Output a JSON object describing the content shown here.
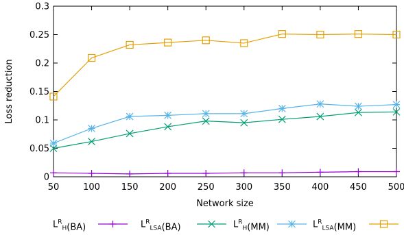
{
  "chart_data": {
    "type": "line",
    "title": "",
    "xlabel": "Network size",
    "ylabel": "Loss reduction",
    "x": [
      50,
      100,
      150,
      200,
      250,
      300,
      350,
      400,
      450,
      500
    ],
    "xlim": [
      50,
      500
    ],
    "ylim": [
      0,
      0.3
    ],
    "x_ticks": [
      {
        "value": 50,
        "label": "50"
      },
      {
        "value": 100,
        "label": "100"
      },
      {
        "value": 150,
        "label": "150"
      },
      {
        "value": 200,
        "label": "200"
      },
      {
        "value": 250,
        "label": "250"
      },
      {
        "value": 300,
        "label": "300"
      },
      {
        "value": 350,
        "label": "350"
      },
      {
        "value": 400,
        "label": "400"
      },
      {
        "value": 450,
        "label": "450"
      },
      {
        "value": 500,
        "label": "500"
      }
    ],
    "y_ticks": [
      {
        "value": 0,
        "label": "0"
      },
      {
        "value": 0.05,
        "label": "0.05"
      },
      {
        "value": 0.1,
        "label": "0.1"
      },
      {
        "value": 0.15,
        "label": "0.15"
      },
      {
        "value": 0.2,
        "label": "0.2"
      },
      {
        "value": 0.25,
        "label": "0.25"
      },
      {
        "value": 0.3,
        "label": "0.3"
      }
    ],
    "grid": false,
    "legend_position": "bottom",
    "series": [
      {
        "name": "L^R_H(BA)",
        "legend_parts": [
          {
            "t": "L"
          },
          {
            "t": "R",
            "s": "sup"
          },
          {
            "t": "H",
            "s": "sub"
          },
          {
            "t": "(BA)"
          }
        ],
        "color": "#9400d3",
        "marker": "plus",
        "values": [
          0.007,
          0.006,
          0.005,
          0.006,
          0.006,
          0.007,
          0.007,
          0.008,
          0.009,
          0.009
        ]
      },
      {
        "name": "L^R_LSA(BA)",
        "legend_parts": [
          {
            "t": "L"
          },
          {
            "t": "R",
            "s": "sup"
          },
          {
            "t": "LSA",
            "s": "sub"
          },
          {
            "t": "(BA)"
          }
        ],
        "color": "#009e73",
        "marker": "cross",
        "values": [
          0.05,
          0.062,
          0.076,
          0.088,
          0.098,
          0.095,
          0.101,
          0.106,
          0.113,
          0.114
        ]
      },
      {
        "name": "L^R_H(MM)",
        "legend_parts": [
          {
            "t": "L"
          },
          {
            "t": "R",
            "s": "sup"
          },
          {
            "t": "H",
            "s": "sub"
          },
          {
            "t": "(MM)"
          }
        ],
        "color": "#56b4e9",
        "marker": "star",
        "values": [
          0.059,
          0.085,
          0.106,
          0.108,
          0.111,
          0.111,
          0.12,
          0.128,
          0.124,
          0.127
        ]
      },
      {
        "name": "L^R_LSA(MM)",
        "legend_parts": [
          {
            "t": "L"
          },
          {
            "t": "R",
            "s": "sup"
          },
          {
            "t": "LSA",
            "s": "sub"
          },
          {
            "t": "(MM)"
          }
        ],
        "color": "#e69f00",
        "marker": "square",
        "values": [
          0.141,
          0.209,
          0.232,
          0.236,
          0.24,
          0.235,
          0.251,
          0.25,
          0.251,
          0.25
        ]
      }
    ]
  }
}
